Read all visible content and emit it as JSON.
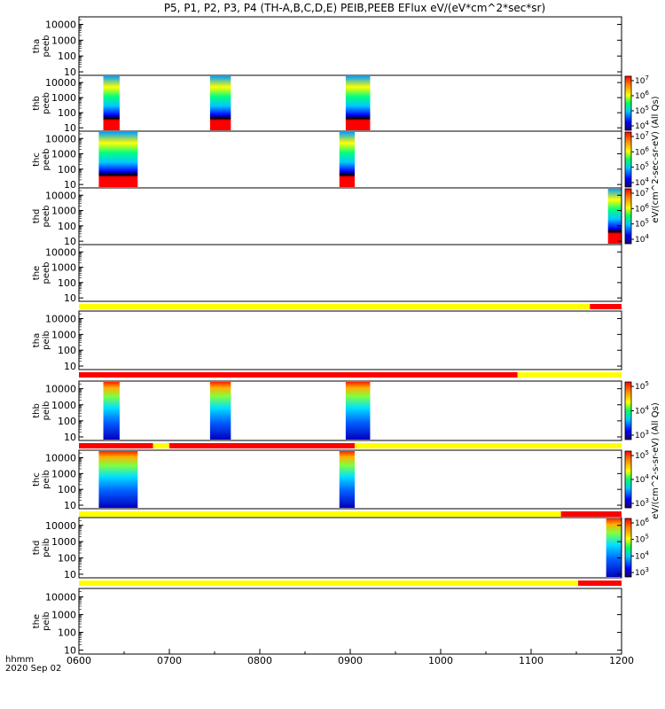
{
  "title": "P5, P1, P2, P3, P4 (TH-A,B,C,D,E) PEIB,PEEB EFlux eV/(eV*cm^2*sec*sr)",
  "time_label_top": "hhmm",
  "time_label_bottom": "2020 Sep 02",
  "colorbar_label_electron": "eV/(cm^2-sec-sr-eV) (All Qs)",
  "colorbar_label_ion": "eV/(cm^2-s-sr-eV) (All Qs)",
  "chart_data": {
    "type": "heatmap",
    "x_axis": {
      "range": [
        "0600",
        "1200"
      ],
      "tick_labels": [
        "0600",
        "0700",
        "0800",
        "0900",
        "1000",
        "1100",
        "1200"
      ],
      "tick_values_hours": [
        6,
        7,
        8,
        9,
        10,
        11,
        12
      ]
    },
    "y_axis": {
      "scale": "log",
      "range": [
        6,
        30000
      ],
      "tick_labels": [
        "10",
        "100",
        "1000",
        "10000"
      ],
      "tick_values": [
        10,
        100,
        1000,
        10000
      ]
    },
    "panels": [
      {
        "id": "tha-peeb",
        "ylabel": [
          "tha",
          "peeb"
        ],
        "ticks": [
          "10",
          "100",
          "1000",
          "10000"
        ],
        "colorbar": null,
        "spectra_hours": [],
        "state_bar": null
      },
      {
        "id": "thb-peeb",
        "ylabel": [
          "thb",
          "peeb"
        ],
        "ticks": [
          "10",
          "100",
          "1000",
          "10000"
        ],
        "colorbar": {
          "ticks": [
            "10^4",
            "10^5",
            "10^6",
            "10^7"
          ]
        },
        "spectra_hours": [
          [
            6.27,
            6.45
          ],
          [
            7.45,
            7.68
          ],
          [
            8.95,
            9.22
          ]
        ],
        "state_bar": null
      },
      {
        "id": "thc-peeb",
        "ylabel": [
          "thc",
          "peeb"
        ],
        "ticks": [
          "10",
          "100",
          "1000",
          "10000"
        ],
        "colorbar": {
          "ticks": [
            "10^4",
            "10^5",
            "10^6",
            "10^7"
          ]
        },
        "spectra_hours": [
          [
            6.22,
            6.65
          ],
          [
            8.88,
            9.05
          ]
        ],
        "state_bar": null
      },
      {
        "id": "thd-peeb",
        "ylabel": [
          "thd",
          "peeb"
        ],
        "ticks": [
          "10",
          "100",
          "1000",
          "10000"
        ],
        "colorbar": {
          "ticks": [
            "10^4",
            "10^5",
            "10^6",
            "10^7"
          ]
        },
        "spectra_hours": [
          [
            11.85,
            12.0
          ]
        ],
        "state_bar": null
      },
      {
        "id": "the-peeb",
        "ylabel": [
          "the",
          "peeb"
        ],
        "ticks": [
          "10",
          "100",
          "1000",
          "10000"
        ],
        "colorbar": null,
        "spectra_hours": [],
        "state_bar": [
          {
            "from": 6.0,
            "to": 11.65,
            "color": "#ffff00"
          },
          {
            "from": 11.65,
            "to": 12.0,
            "color": "#ff0000"
          }
        ]
      },
      {
        "id": "tha-peib",
        "ylabel": [
          "tha",
          "peib"
        ],
        "ticks": [
          "10",
          "100",
          "1000",
          "10000"
        ],
        "colorbar": null,
        "spectra_hours": [],
        "state_bar": [
          {
            "from": 6.0,
            "to": 10.85,
            "color": "#ff0000"
          },
          {
            "from": 10.85,
            "to": 12.0,
            "color": "#ffff00"
          }
        ]
      },
      {
        "id": "thb-peib",
        "ylabel": [
          "thb",
          "peib"
        ],
        "ticks": [
          "10",
          "100",
          "1000",
          "10000"
        ],
        "colorbar": {
          "ticks": [
            "10^3",
            "10^4",
            "10^5"
          ]
        },
        "spectra_hours": [
          [
            6.27,
            6.45
          ],
          [
            7.45,
            7.68
          ],
          [
            8.95,
            9.22
          ]
        ],
        "state_bar": [
          {
            "from": 6.0,
            "to": 6.82,
            "color": "#ff0000"
          },
          {
            "from": 6.82,
            "to": 7.0,
            "color": "#ffff00"
          },
          {
            "from": 7.0,
            "to": 9.05,
            "color": "#ff0000"
          },
          {
            "from": 9.05,
            "to": 12.0,
            "color": "#ffff00"
          }
        ]
      },
      {
        "id": "thc-peib",
        "ylabel": [
          "thc",
          "peib"
        ],
        "ticks": [
          "10",
          "100",
          "1000",
          "10000"
        ],
        "colorbar": {
          "ticks": [
            "10^3",
            "10^4",
            "10^5"
          ]
        },
        "spectra_hours": [
          [
            6.22,
            6.65
          ],
          [
            8.88,
            9.05
          ]
        ],
        "state_bar": [
          {
            "from": 6.0,
            "to": 11.33,
            "color": "#ffff00"
          },
          {
            "from": 11.33,
            "to": 12.0,
            "color": "#ff0000"
          }
        ]
      },
      {
        "id": "thd-peib",
        "ylabel": [
          "thd",
          "peib"
        ],
        "ticks": [
          "10",
          "100",
          "1000",
          "10000"
        ],
        "colorbar": {
          "ticks": [
            "10^3",
            "10^4",
            "10^5",
            "10^6"
          ]
        },
        "spectra_hours": [
          [
            11.83,
            12.0
          ]
        ],
        "state_bar": [
          {
            "from": 6.0,
            "to": 11.52,
            "color": "#ffff00"
          },
          {
            "from": 11.52,
            "to": 12.0,
            "color": "#ff0000"
          }
        ]
      },
      {
        "id": "the-peib",
        "ylabel": [
          "the",
          "peib"
        ],
        "ticks": [
          "10",
          "100",
          "1000",
          "10000"
        ],
        "colorbar": null,
        "spectra_hours": [],
        "state_bar": null
      }
    ]
  }
}
